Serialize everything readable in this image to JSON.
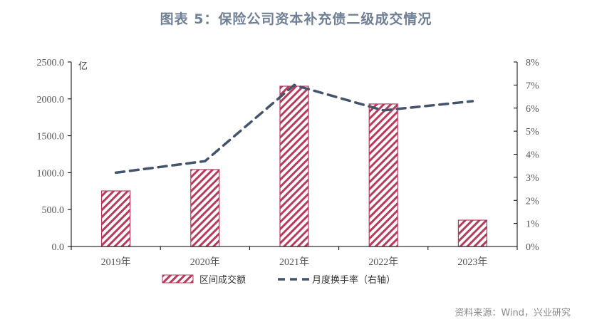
{
  "title": "图表 5：保险公司资本补充债二级成交情况",
  "source": "资料来源：Wind，兴业研究",
  "colors": {
    "bar": "#b83a5c",
    "line": "#44546a",
    "title": "#6f7f96"
  },
  "chart_data": {
    "type": "bar+line",
    "title": "图表 5：保险公司资本补充债二级成交情况",
    "categories": [
      "2019年",
      "2020年",
      "2021年",
      "2022年",
      "2023年"
    ],
    "series": [
      {
        "name": "区间成交额",
        "type": "bar",
        "axis": "left",
        "values": [
          753,
          1043,
          2172,
          1931,
          357
        ]
      },
      {
        "name": "月度换手率（右轴）",
        "type": "line",
        "axis": "right",
        "values": [
          3.2,
          3.7,
          7.0,
          5.9,
          6.3
        ]
      }
    ],
    "left_axis": {
      "unit": "亿",
      "ylim": [
        0,
        2500
      ],
      "ticks": [
        "0.0",
        "500.0",
        "1000.0",
        "1500.0",
        "2000.0",
        "2500.0"
      ]
    },
    "right_axis": {
      "ylim": [
        0,
        8
      ],
      "ticks": [
        "0%",
        "1%",
        "2%",
        "3%",
        "4%",
        "5%",
        "6%",
        "7%",
        "8%"
      ]
    },
    "legend": [
      "区间成交额",
      "月度换手率（右轴）"
    ],
    "legend_position": "bottom",
    "grid": false
  }
}
